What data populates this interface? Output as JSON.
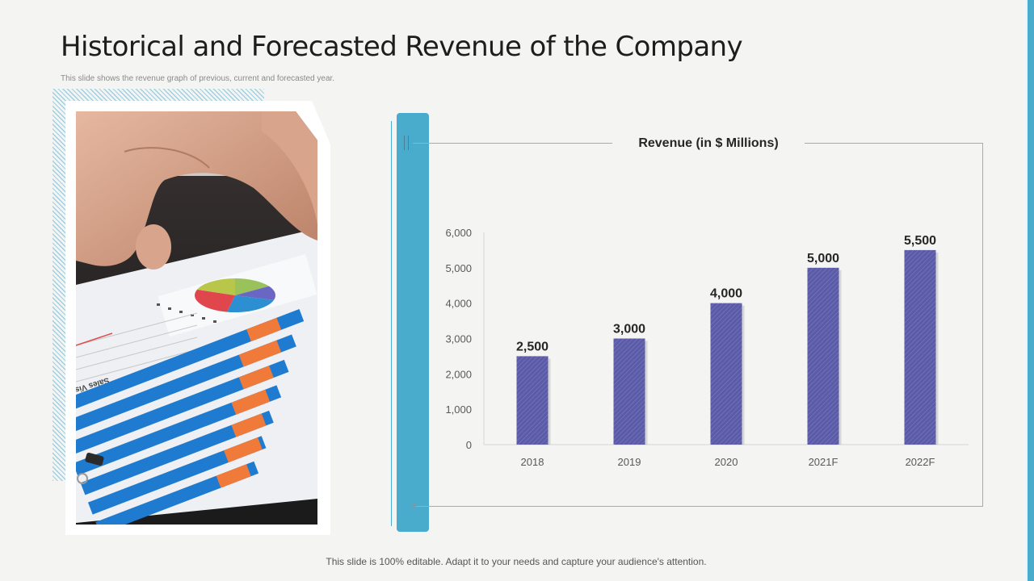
{
  "slide": {
    "title": "Historical and Forecasted Revenue of the Company",
    "subtitle": "This slide shows the revenue graph of previous, current and forecasted year.",
    "footer": "This slide is 100% editable. Adapt it to your needs and capture your audience's attention."
  },
  "photo": {
    "description": "hand holding tablet with charts",
    "document_text": "Sales Vision"
  },
  "chart_data": {
    "type": "bar",
    "title": "Revenue (in $ Millions)",
    "categories": [
      "2018",
      "2019",
      "2020",
      "2021F",
      "2022F"
    ],
    "values": [
      2500,
      3000,
      4000,
      5000,
      5500
    ],
    "data_labels": [
      "2,500",
      "3,000",
      "4,000",
      "5,000",
      "5,500"
    ],
    "ylim": [
      0,
      6000
    ],
    "yticks": [
      0,
      1000,
      2000,
      3000,
      4000,
      5000,
      6000
    ],
    "ytick_labels": [
      "0",
      "1,000",
      "2,000",
      "3,000",
      "4,000",
      "5,000",
      "6,000"
    ],
    "xlabel": "",
    "ylabel": "",
    "grid": false,
    "bar_color": "#5b5ba8"
  },
  "colors": {
    "accent": "#4aaccd",
    "background": "#f4f4f2"
  }
}
